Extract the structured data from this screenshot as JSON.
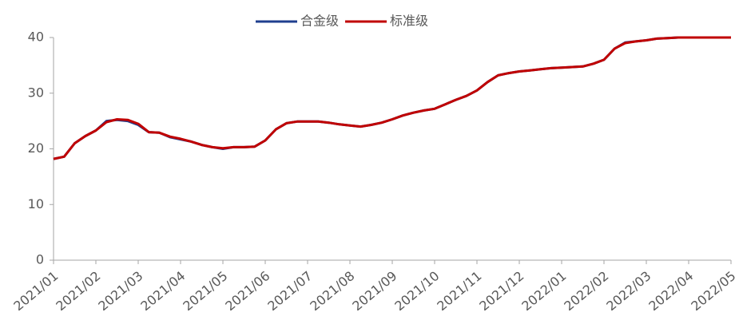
{
  "chart_data": {
    "type": "line",
    "x": [
      0,
      0.25,
      0.5,
      0.75,
      1,
      1.25,
      1.5,
      1.75,
      2,
      2.25,
      2.5,
      2.75,
      3,
      3.25,
      3.5,
      3.75,
      4,
      4.25,
      4.5,
      4.75,
      5,
      5.25,
      5.5,
      5.75,
      6,
      6.25,
      6.5,
      6.75,
      7,
      7.25,
      7.5,
      7.75,
      8,
      8.25,
      8.5,
      8.75,
      9,
      9.25,
      9.5,
      9.75,
      10,
      10.25,
      10.5,
      10.75,
      11,
      11.25,
      11.5,
      11.75,
      12,
      12.25,
      12.5,
      12.75,
      13,
      13.25,
      13.5,
      13.75,
      14,
      14.25,
      14.5,
      14.75,
      15,
      15.25,
      15.5,
      15.75,
      16
    ],
    "series": [
      {
        "name": "合金级",
        "color": "#1f3f8f",
        "values": [
          18.2,
          18.6,
          21,
          22.3,
          23.3,
          25.0,
          25.2,
          25.0,
          24.3,
          23.0,
          22.9,
          22.1,
          21.7,
          21.3,
          20.7,
          20.3,
          20.0,
          20.3,
          20.3,
          20.4,
          21.5,
          23.5,
          24.6,
          24.9,
          24.9,
          24.9,
          24.7,
          24.4,
          24.2,
          24.0,
          24.3,
          24.7,
          25.3,
          26.0,
          26.5,
          26.9,
          27.2,
          28.0,
          28.8,
          29.5,
          30.5,
          32.0,
          33.2,
          33.6,
          33.9,
          34.1,
          34.3,
          34.5,
          34.6,
          34.7,
          34.8,
          35.3,
          36.0,
          38.0,
          39.1,
          39.3,
          39.5,
          39.8,
          39.9,
          40,
          40,
          40,
          40,
          40,
          40
        ]
      },
      {
        "name": "标准级",
        "color": "#c00000",
        "values": [
          18.2,
          18.6,
          21,
          22.3,
          23.3,
          24.8,
          25.3,
          25.2,
          24.5,
          23.0,
          22.9,
          22.2,
          21.8,
          21.3,
          20.7,
          20.3,
          20.1,
          20.3,
          20.3,
          20.4,
          21.5,
          23.5,
          24.6,
          24.9,
          24.9,
          24.9,
          24.7,
          24.4,
          24.2,
          24.0,
          24.3,
          24.7,
          25.3,
          26.0,
          26.5,
          26.9,
          27.2,
          28.0,
          28.8,
          29.5,
          30.5,
          32.0,
          33.2,
          33.6,
          33.9,
          34.1,
          34.3,
          34.5,
          34.6,
          34.7,
          34.8,
          35.3,
          36.0,
          38.0,
          39.0,
          39.3,
          39.5,
          39.8,
          39.9,
          40,
          40,
          40,
          40,
          40,
          40
        ]
      }
    ],
    "xlim": [
      0,
      16
    ],
    "xticks": [
      {
        "value": 0,
        "label": "2021/01"
      },
      {
        "value": 1,
        "label": "2021/02"
      },
      {
        "value": 2,
        "label": "2021/03"
      },
      {
        "value": 3,
        "label": "2021/04"
      },
      {
        "value": 4,
        "label": "2021/05"
      },
      {
        "value": 5,
        "label": "2021/06"
      },
      {
        "value": 6,
        "label": "2021/07"
      },
      {
        "value": 7,
        "label": "2021/08"
      },
      {
        "value": 8,
        "label": "2021/09"
      },
      {
        "value": 9,
        "label": "2021/10"
      },
      {
        "value": 10,
        "label": "2021/11"
      },
      {
        "value": 11,
        "label": "2021/12"
      },
      {
        "value": 12,
        "label": "2022/01"
      },
      {
        "value": 13,
        "label": "2022/02"
      },
      {
        "value": 14,
        "label": "2022/03"
      },
      {
        "value": 15,
        "label": "2022/04"
      },
      {
        "value": 16,
        "label": "2022/05"
      }
    ],
    "ylim": [
      0,
      40
    ],
    "yticks": [
      0,
      10,
      20,
      30,
      40
    ],
    "grid": false,
    "legend": "top"
  }
}
